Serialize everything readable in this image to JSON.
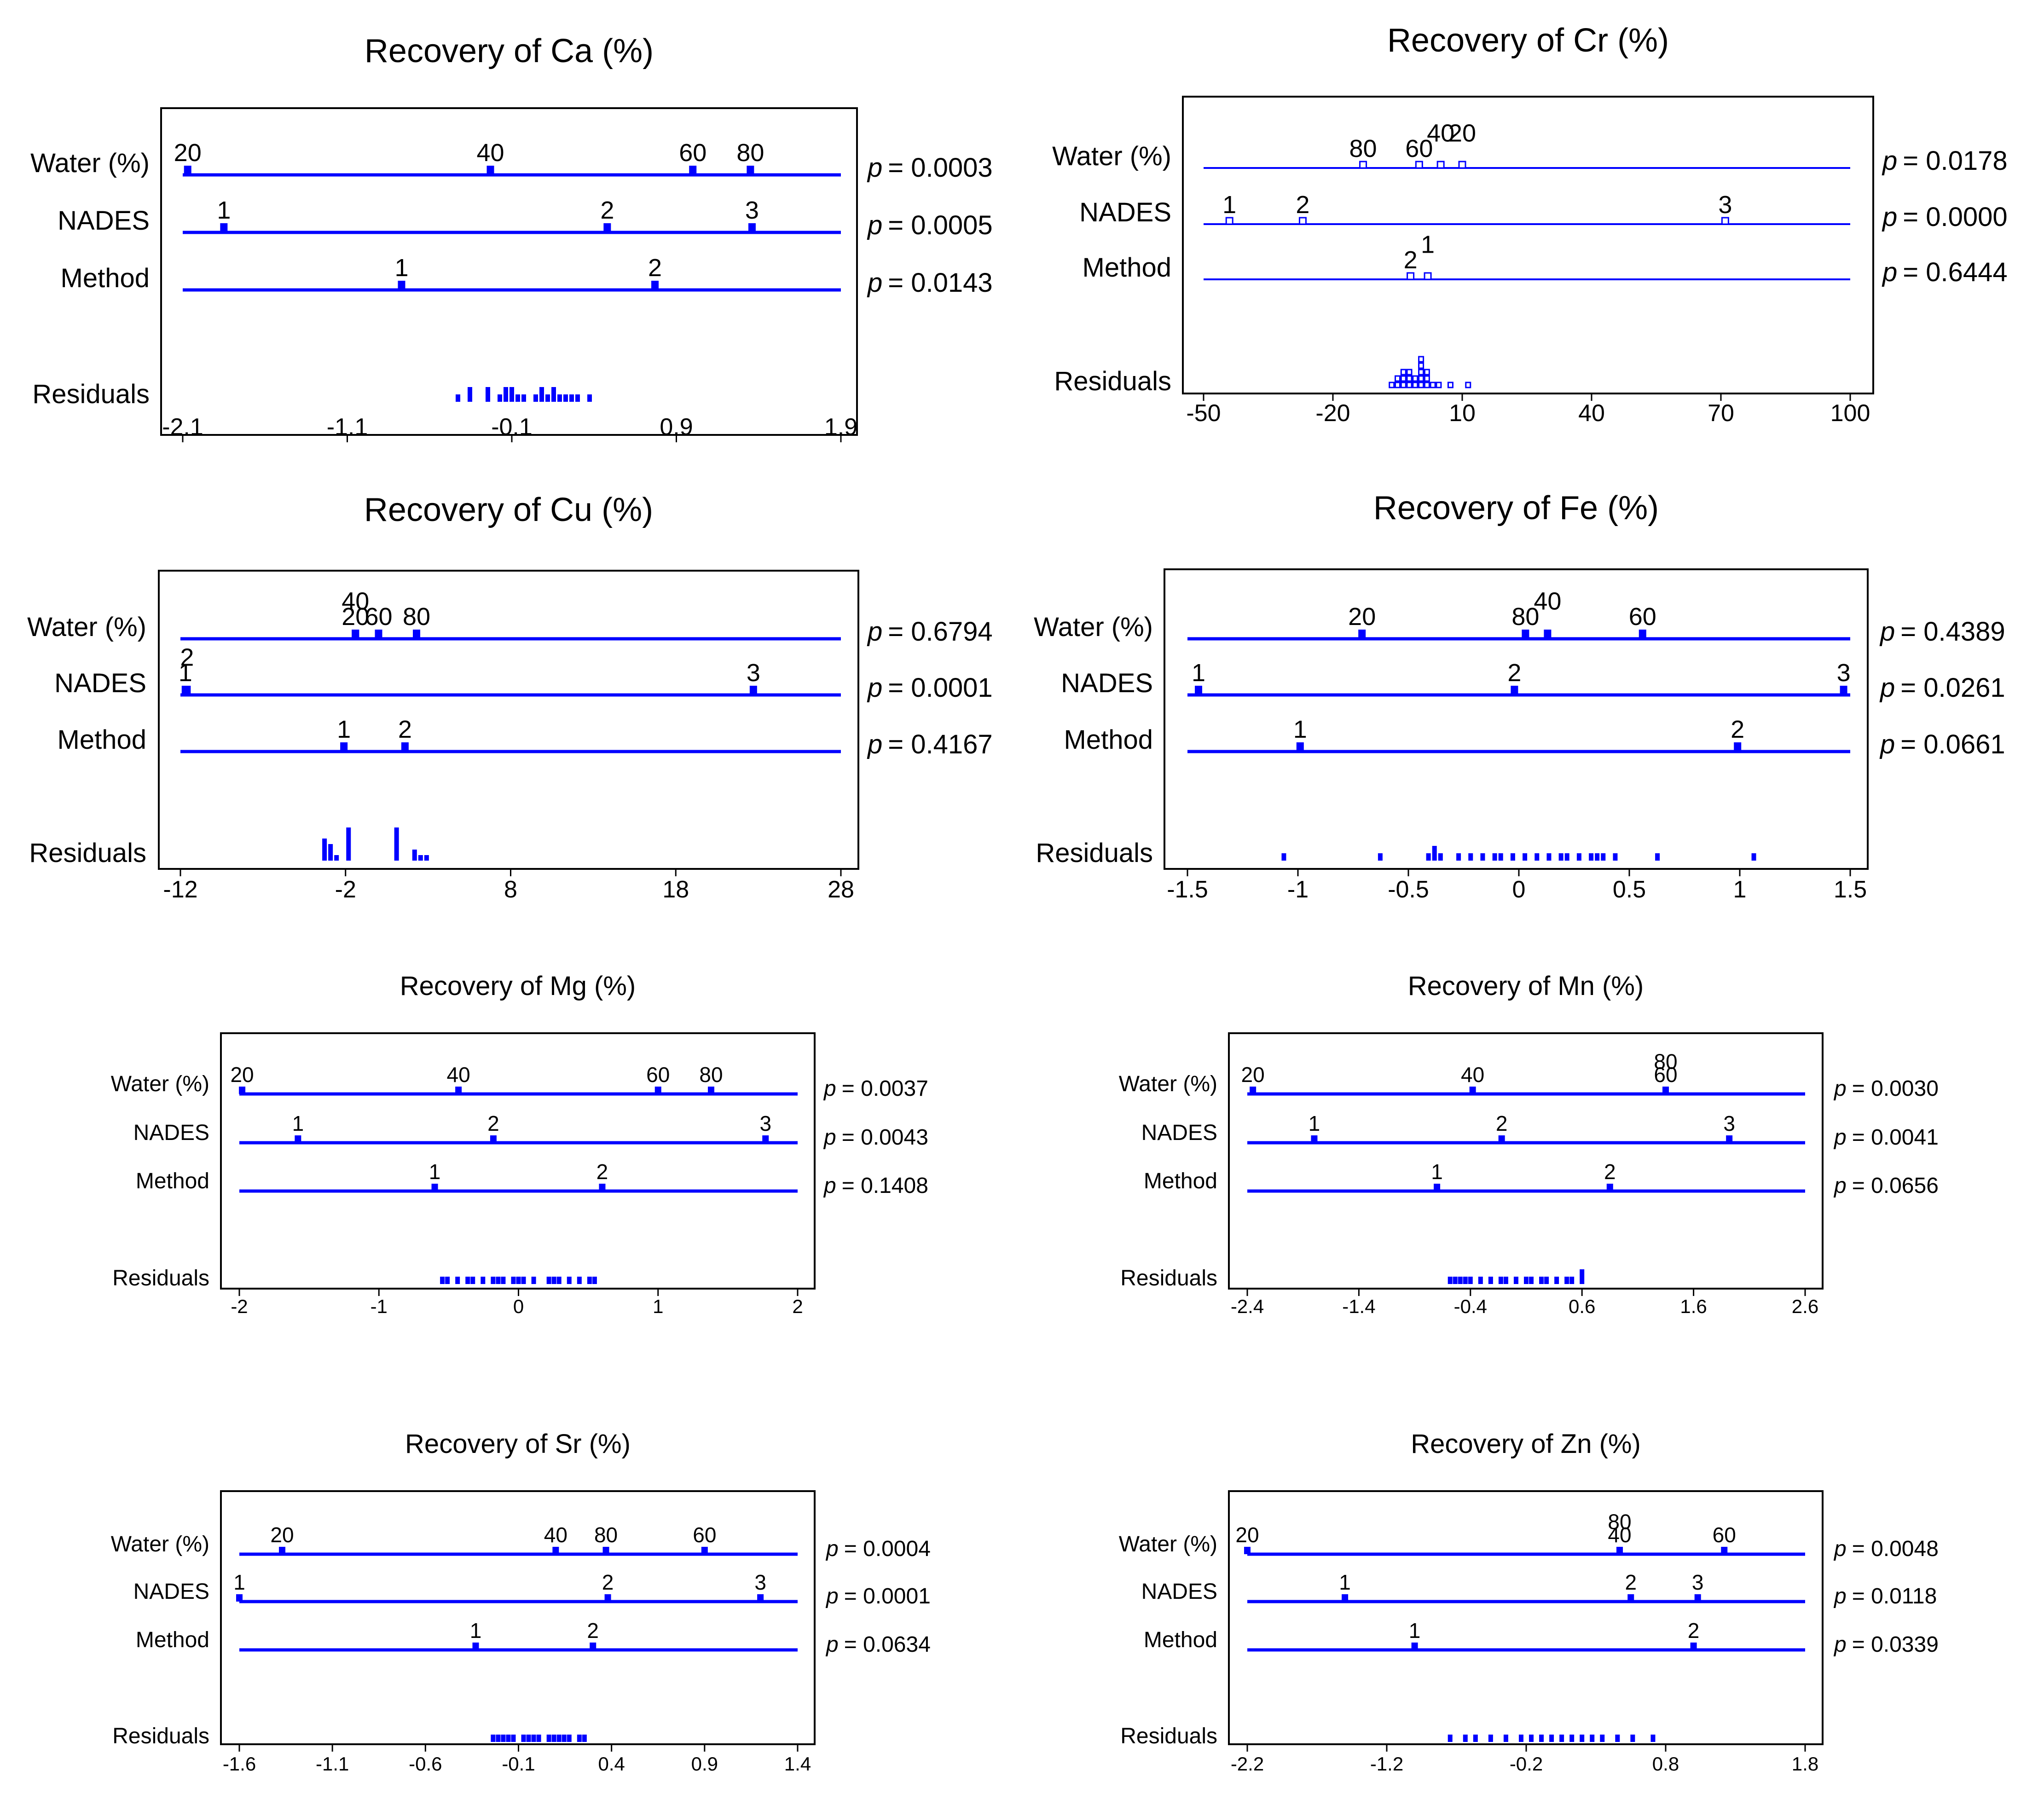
{
  "colors": {
    "accent": "#0000ff",
    "frame": "#000000",
    "text": "#000000"
  },
  "chart_data": [
    {
      "type": "dot-diagram",
      "title": "Recovery of Ca (%)",
      "xlim": [
        -2.1,
        1.9
      ],
      "ticks": [
        "-2.1",
        "-1.1",
        "-0.1",
        "0.9",
        "1.9"
      ],
      "tick_values": [
        -2.1,
        -1.1,
        -0.1,
        0.9,
        1.9
      ],
      "factors": [
        {
          "name": "Water (%)",
          "p_label": "p",
          "p_value": "= 0.0003",
          "levels": [
            {
              "label": "20",
              "value": -2.07
            },
            {
              "label": "40",
              "value": -0.23
            },
            {
              "label": "60",
              "value": 1.0
            },
            {
              "label": "80",
              "value": 1.35
            }
          ]
        },
        {
          "name": "NADES",
          "p_label": "p",
          "p_value": "= 0.0005",
          "levels": [
            {
              "label": "1",
              "value": -1.85
            },
            {
              "label": "2",
              "value": 0.48
            },
            {
              "label": "3",
              "value": 1.36
            }
          ]
        },
        {
          "name": "Method",
          "p_label": "p",
          "p_value": "= 0.0143",
          "levels": [
            {
              "label": "1",
              "value": -0.77
            },
            {
              "label": "2",
              "value": 0.77
            }
          ]
        }
      ],
      "residuals_label": "Residuals",
      "residuals": [
        -0.44,
        -0.36,
        -0.34,
        -0.25,
        -0.23,
        -0.18,
        -0.14,
        -0.12,
        -0.1,
        -0.09,
        -0.06,
        -0.03,
        0.05,
        0.07,
        0.09,
        0.12,
        0.14,
        0.17,
        0.19,
        0.22,
        0.27,
        0.31,
        0.39
      ]
    },
    {
      "type": "dot-diagram",
      "title": "Recovery of Cr (%)",
      "xlim": [
        -50,
        100
      ],
      "ticks": [
        "-50",
        "-20",
        "10",
        "40",
        "70",
        "100"
      ],
      "tick_values": [
        -50,
        -20,
        10,
        40,
        70,
        100
      ],
      "factors": [
        {
          "name": "Water (%)",
          "p_label": "p",
          "p_value": "= 0.0178",
          "levels": [
            {
              "label": "80",
              "value": -13
            },
            {
              "label": "60",
              "value": 0
            },
            {
              "label": "40",
              "value": 5
            },
            {
              "label": "20",
              "value": 10
            }
          ]
        },
        {
          "name": "NADES",
          "p_label": "p",
          "p_value": "= 0.0000",
          "levels": [
            {
              "label": "1",
              "value": -44
            },
            {
              "label": "2",
              "value": -27
            },
            {
              "label": "3",
              "value": 71
            }
          ]
        },
        {
          "name": "Method",
          "p_label": "p",
          "p_value": "= 0.6444",
          "levels": [
            {
              "label": "2",
              "value": -2
            },
            {
              "label": "1",
              "value": 2
            }
          ]
        }
      ],
      "residuals_label": "Residuals",
      "residuals": [
        -6,
        -5,
        -5,
        -4,
        -3,
        -3,
        -2,
        -2,
        -2,
        -1,
        -1,
        0,
        0,
        0,
        1,
        1,
        2,
        2,
        2,
        3,
        5,
        7,
        12
      ]
    },
    {
      "type": "dot-diagram",
      "title": "Recovery of Cu (%)",
      "xlim": [
        -12,
        28
      ],
      "ticks": [
        "-12",
        "-2",
        "8",
        "18",
        "28"
      ],
      "tick_values": [
        -12,
        -2,
        8,
        18,
        28
      ],
      "factors": [
        {
          "name": "Water (%)",
          "p_label": "p",
          "p_value": "= 0.6794",
          "levels": [
            {
              "label": "20",
              "value": -1.4
            },
            {
              "label": "40",
              "value": -1.4
            },
            {
              "label": "60",
              "value": 0.0
            },
            {
              "label": "80",
              "value": 2.3
            }
          ]
        },
        {
          "name": "NADES",
          "p_label": "p",
          "p_value": "= 0.0001",
          "levels": [
            {
              "label": "1",
              "value": -11.7
            },
            {
              "label": "2",
              "value": -11.6
            },
            {
              "label": "3",
              "value": 22.7
            }
          ]
        },
        {
          "name": "Method",
          "p_label": "p",
          "p_value": "= 0.4167",
          "levels": [
            {
              "label": "1",
              "value": -2.1
            },
            {
              "label": "2",
              "value": 1.6
            }
          ]
        }
      ],
      "residuals_label": "Residuals",
      "residuals": [
        -3.4,
        -3.3,
        -3.2,
        -3.1,
        -3.0,
        -2.9,
        -2.8,
        -2.7,
        -1.9,
        -1.9,
        -1.9,
        -1.9,
        -1.9,
        -1.9,
        1.1,
        1.1,
        1.1,
        1.1,
        1.1,
        1.1,
        2.0,
        2.2,
        2.6,
        2.9
      ]
    },
    {
      "type": "dot-diagram",
      "title": "Recovery of Fe (%)",
      "xlim": [
        -1.5,
        1.5
      ],
      "ticks": [
        "-1.5",
        "-1",
        "-0.5",
        "0",
        "0.5",
        "1",
        "1.5"
      ],
      "tick_values": [
        -1.5,
        -1,
        -0.5,
        0,
        0.5,
        1,
        1.5
      ],
      "factors": [
        {
          "name": "Water (%)",
          "p_label": "p",
          "p_value": "= 0.4389",
          "levels": [
            {
              "label": "20",
              "value": -0.71
            },
            {
              "label": "80",
              "value": 0.03
            },
            {
              "label": "40",
              "value": 0.13
            },
            {
              "label": "60",
              "value": 0.56
            }
          ]
        },
        {
          "name": "NADES",
          "p_label": "p",
          "p_value": "= 0.0261",
          "levels": [
            {
              "label": "1",
              "value": -1.45
            },
            {
              "label": "2",
              "value": -0.02
            },
            {
              "label": "3",
              "value": 1.47
            }
          ]
        },
        {
          "name": "Method",
          "p_label": "p",
          "p_value": "= 0.0661",
          "levels": [
            {
              "label": "1",
              "value": -0.99
            },
            {
              "label": "2",
              "value": 0.99
            }
          ]
        }
      ],
      "residuals_label": "Residuals",
      "residuals": [
        -1.06,
        -0.64,
        -0.42,
        -0.39,
        -0.38,
        -0.35,
        -0.27,
        -0.22,
        -0.17,
        -0.12,
        -0.07,
        -0.02,
        0.02,
        0.08,
        0.13,
        0.19,
        0.23,
        0.28,
        0.33,
        0.35,
        0.38,
        0.43,
        0.64,
        1.07
      ]
    },
    {
      "type": "dot-diagram",
      "title": "Recovery of Mg (%)",
      "xlim": [
        -2,
        2
      ],
      "ticks": [
        "-2",
        "-1",
        "0",
        "1",
        "2"
      ],
      "tick_values": [
        -2,
        -1,
        0,
        1,
        2
      ],
      "factors": [
        {
          "name": "Water (%)",
          "p_label": "p",
          "p_value": "= 0.0037",
          "levels": [
            {
              "label": "20",
              "value": -1.98
            },
            {
              "label": "40",
              "value": -0.43
            },
            {
              "label": "60",
              "value": 1.0
            },
            {
              "label": "80",
              "value": 1.38
            }
          ]
        },
        {
          "name": "NADES",
          "p_label": "p",
          "p_value": "= 0.0043",
          "levels": [
            {
              "label": "1",
              "value": -1.58
            },
            {
              "label": "2",
              "value": -0.18
            },
            {
              "label": "3",
              "value": 1.77
            }
          ]
        },
        {
          "name": "Method",
          "p_label": "p",
          "p_value": "= 0.1408",
          "levels": [
            {
              "label": "1",
              "value": -0.6
            },
            {
              "label": "2",
              "value": 0.6
            }
          ]
        }
      ],
      "residuals_label": "Residuals",
      "residuals": [
        -0.56,
        -0.5,
        -0.44,
        -0.36,
        -0.31,
        -0.25,
        -0.2,
        -0.15,
        -0.1,
        -0.05,
        0.0,
        0.05,
        0.12,
        0.2,
        0.25,
        0.3,
        0.36,
        0.42,
        0.5,
        0.55
      ]
    },
    {
      "type": "dot-diagram",
      "title": "Recovery of Mn (%)",
      "xlim": [
        -2.4,
        2.6
      ],
      "ticks": [
        "-2.4",
        "-1.4",
        "-0.4",
        "0.6",
        "1.6",
        "2.6"
      ],
      "tick_values": [
        -2.4,
        -1.4,
        -0.4,
        0.6,
        1.6,
        2.6
      ],
      "factors": [
        {
          "name": "Water (%)",
          "p_label": "p",
          "p_value": "= 0.0030",
          "levels": [
            {
              "label": "20",
              "value": -2.35
            },
            {
              "label": "40",
              "value": -0.38
            },
            {
              "label": "60",
              "value": 1.35
            },
            {
              "label": "80",
              "value": 1.35
            }
          ]
        },
        {
          "name": "NADES",
          "p_label": "p",
          "p_value": "= 0.0041",
          "levels": [
            {
              "label": "1",
              "value": -1.8
            },
            {
              "label": "2",
              "value": -0.12
            },
            {
              "label": "3",
              "value": 1.92
            }
          ]
        },
        {
          "name": "Method",
          "p_label": "p",
          "p_value": "= 0.0656",
          "levels": [
            {
              "label": "1",
              "value": -0.7
            },
            {
              "label": "2",
              "value": 0.85
            }
          ]
        }
      ],
      "residuals_label": "Residuals",
      "residuals": [
        -0.6,
        -0.55,
        -0.5,
        -0.45,
        -0.38,
        -0.3,
        -0.22,
        -0.15,
        -0.08,
        0.0,
        0.08,
        0.15,
        0.22,
        0.3,
        0.38,
        0.45,
        0.52,
        0.58,
        0.62
      ]
    },
    {
      "type": "dot-diagram",
      "title": "Recovery of Sr (%)",
      "xlim": [
        -1.6,
        1.4
      ],
      "ticks": [
        "-1.6",
        "-1.1",
        "-0.6",
        "-0.1",
        "0.4",
        "0.9",
        "1.4"
      ],
      "tick_values": [
        -1.6,
        -1.1,
        -0.6,
        -0.1,
        0.4,
        0.9,
        1.4
      ],
      "factors": [
        {
          "name": "Water (%)",
          "p_label": "p",
          "p_value": "= 0.0004",
          "levels": [
            {
              "label": "20",
              "value": -1.37
            },
            {
              "label": "40",
              "value": 0.1
            },
            {
              "label": "80",
              "value": 0.37
            },
            {
              "label": "60",
              "value": 0.9
            }
          ]
        },
        {
          "name": "NADES",
          "p_label": "p",
          "p_value": "= 0.0001",
          "levels": [
            {
              "label": "1",
              "value": -1.6
            },
            {
              "label": "2",
              "value": 0.38
            },
            {
              "label": "3",
              "value": 1.2
            }
          ]
        },
        {
          "name": "Method",
          "p_label": "p",
          "p_value": "= 0.0634",
          "levels": [
            {
              "label": "1",
              "value": -0.33
            },
            {
              "label": "2",
              "value": 0.3
            }
          ]
        }
      ],
      "residuals_label": "Residuals",
      "residuals": [
        -0.25,
        -0.22,
        -0.18,
        -0.15,
        -0.12,
        -0.08,
        -0.05,
        -0.02,
        0.02,
        0.05,
        0.08,
        0.12,
        0.15,
        0.18,
        0.22,
        0.26
      ]
    },
    {
      "type": "dot-diagram",
      "title": "Recovery of Zn (%)",
      "xlim": [
        -2.2,
        1.8
      ],
      "ticks": [
        "-2.2",
        "-1.2",
        "-0.2",
        "0.8",
        "1.8"
      ],
      "tick_values": [
        -2.2,
        -1.2,
        -0.2,
        0.8,
        1.8
      ],
      "factors": [
        {
          "name": "Water (%)",
          "p_label": "p",
          "p_value": "= 0.0048",
          "levels": [
            {
              "label": "20",
              "value": -2.2
            },
            {
              "label": "40",
              "value": 0.47
            },
            {
              "label": "80",
              "value": 0.47
            },
            {
              "label": "60",
              "value": 1.22
            }
          ]
        },
        {
          "name": "NADES",
          "p_label": "p",
          "p_value": "= 0.0118",
          "levels": [
            {
              "label": "1",
              "value": -1.5
            },
            {
              "label": "2",
              "value": 0.55
            },
            {
              "label": "3",
              "value": 1.03
            }
          ]
        },
        {
          "name": "Method",
          "p_label": "p",
          "p_value": "= 0.0339",
          "levels": [
            {
              "label": "1",
              "value": -1.0
            },
            {
              "label": "2",
              "value": 1.0
            }
          ]
        }
      ],
      "residuals_label": "Residuals",
      "residuals": [
        -0.75,
        -0.65,
        -0.55,
        -0.45,
        -0.35,
        -0.25,
        -0.18,
        -0.1,
        -0.02,
        0.05,
        0.12,
        0.2,
        0.28,
        0.35,
        0.45,
        0.55,
        0.7
      ]
    }
  ]
}
